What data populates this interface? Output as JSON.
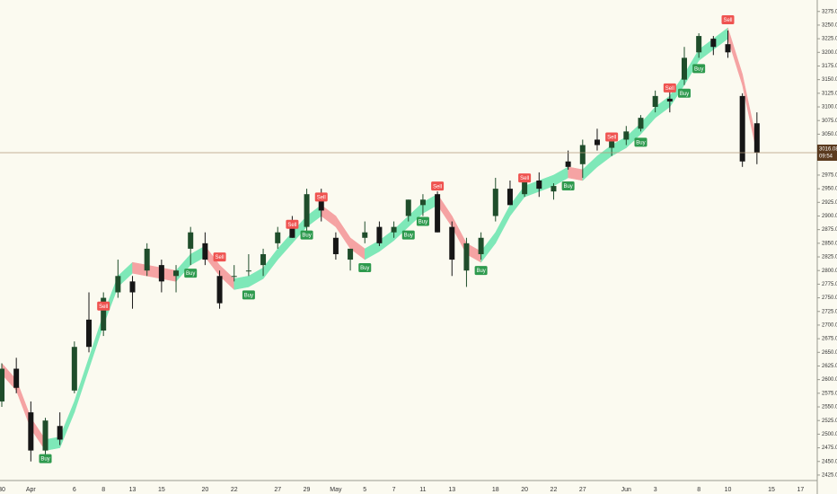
{
  "chart_data": {
    "type": "candlestick",
    "categories": [
      "30",
      null,
      "Apr",
      null,
      null,
      "6",
      null,
      "8",
      null,
      "13",
      null,
      "15",
      null,
      null,
      "20",
      null,
      "22",
      null,
      null,
      "27",
      null,
      "29",
      null,
      "May",
      null,
      "5",
      null,
      "7",
      null,
      "11",
      null,
      "13",
      null,
      null,
      "18",
      null,
      "20",
      null,
      "22",
      null,
      "27",
      null,
      null,
      "Jun",
      null,
      "3",
      null,
      null,
      "8",
      null,
      "10",
      null,
      null,
      "15",
      null,
      "17"
    ],
    "open": [
      2560,
      2620,
      2540,
      2470,
      2515,
      2580,
      2710,
      2690,
      2760,
      2780,
      2800,
      2810,
      2790,
      2840,
      2850,
      2790,
      2790,
      2800,
      2810,
      2850,
      2890,
      2880,
      2930,
      2860,
      2820,
      2860,
      2880,
      2870,
      2900,
      2920,
      2940,
      2880,
      2800,
      2830,
      2900,
      2950,
      2940,
      2965,
      2945,
      3000,
      2995,
      3040,
      3025,
      3040,
      3060,
      3100,
      3115,
      3150,
      3200,
      3225,
      3215,
      3120,
      3070,
      null,
      null,
      null
    ],
    "high": [
      2630,
      2640,
      2560,
      2530,
      2540,
      2670,
      2760,
      2760,
      2820,
      2790,
      2850,
      2820,
      2810,
      2880,
      2870,
      2800,
      2810,
      2830,
      2840,
      2880,
      2900,
      2950,
      2950,
      2870,
      2840,
      2890,
      2890,
      2890,
      2930,
      2940,
      2945,
      2890,
      2860,
      2870,
      2970,
      2965,
      2975,
      2980,
      2960,
      3020,
      3040,
      3060,
      3050,
      3065,
      3085,
      3130,
      3130,
      3210,
      3235,
      3230,
      3240,
      3125,
      3090,
      null,
      null,
      null
    ],
    "low": [
      2550,
      2575,
      2450,
      2455,
      2480,
      2575,
      2650,
      2680,
      2750,
      2730,
      2790,
      2760,
      2760,
      2810,
      2810,
      2730,
      2780,
      2790,
      2790,
      2840,
      2860,
      2870,
      2890,
      2820,
      2800,
      2850,
      2845,
      2860,
      2890,
      2900,
      2870,
      2790,
      2770,
      2820,
      2890,
      2920,
      2935,
      2935,
      2930,
      2985,
      2970,
      3020,
      3010,
      3030,
      3055,
      3090,
      3090,
      3140,
      3190,
      3195,
      3190,
      2990,
      2995,
      null,
      null,
      null
    ],
    "close": [
      2620,
      2585,
      2470,
      2525,
      2490,
      2660,
      2660,
      2750,
      2790,
      2760,
      2840,
      2780,
      2800,
      2870,
      2820,
      2740,
      2790,
      2800,
      2830,
      2870,
      2860,
      2940,
      2910,
      2830,
      2840,
      2870,
      2850,
      2880,
      2930,
      2930,
      2870,
      2820,
      2850,
      2860,
      2950,
      2920,
      2970,
      2950,
      2955,
      2990,
      3030,
      3030,
      3045,
      3055,
      3080,
      3120,
      3110,
      3190,
      3230,
      3210,
      3200,
      3000,
      3016.08,
      null,
      null,
      null
    ],
    "up_color": "#1f4d2b",
    "down_color": "#161616",
    "ylim": [
      2415,
      3296
    ],
    "yticks": [
      {
        "value": 3275,
        "label": "3275.00"
      },
      {
        "value": 3250,
        "label": "3250.00"
      },
      {
        "value": 3225,
        "label": "3225.00"
      },
      {
        "value": 3200,
        "label": "3200.00"
      },
      {
        "value": 3175,
        "label": "3175.00"
      },
      {
        "value": 3150,
        "label": "3150.00"
      },
      {
        "value": 3125,
        "label": "3125.00"
      },
      {
        "value": 3100,
        "label": "3100.00"
      },
      {
        "value": 3075,
        "label": "3075.00"
      },
      {
        "value": 3050,
        "label": "3050.00"
      },
      {
        "value": 2975,
        "label": "2975.00"
      },
      {
        "value": 2950,
        "label": "2950.00"
      },
      {
        "value": 2925,
        "label": "2925.00"
      },
      {
        "value": 2900,
        "label": "2900.00"
      },
      {
        "value": 2875,
        "label": "2875.00"
      },
      {
        "value": 2850,
        "label": "2850.00"
      },
      {
        "value": 2825,
        "label": "2825.00"
      },
      {
        "value": 2800,
        "label": "2800.00"
      },
      {
        "value": 2775,
        "label": "2775.00"
      },
      {
        "value": 2750,
        "label": "2750.00"
      },
      {
        "value": 2725,
        "label": "2725.00"
      },
      {
        "value": 2700,
        "label": "2700.00"
      },
      {
        "value": 2675,
        "label": "2675.00"
      },
      {
        "value": 2650,
        "label": "2650.00"
      },
      {
        "value": 2625,
        "label": "2625.00"
      },
      {
        "value": 2600,
        "label": "2600.00"
      },
      {
        "value": 2575,
        "label": "2575.00"
      },
      {
        "value": 2550,
        "label": "2550.00"
      },
      {
        "value": 2525,
        "label": "2525.00"
      },
      {
        "value": 2500,
        "label": "2500.00"
      },
      {
        "value": 2475,
        "label": "2475.00"
      },
      {
        "value": 2450,
        "label": "2450.00"
      },
      {
        "value": 2425,
        "label": "2425.00"
      }
    ],
    "band": {
      "upper": [
        2630,
        2600,
        2530,
        2490,
        2495,
        2560,
        2640,
        2720,
        2790,
        2815,
        2810,
        2805,
        2800,
        2830,
        2845,
        2810,
        2785,
        2790,
        2805,
        2840,
        2870,
        2900,
        2920,
        2900,
        2860,
        2840,
        2855,
        2875,
        2900,
        2925,
        2940,
        2900,
        2850,
        2835,
        2870,
        2920,
        2955,
        2965,
        2975,
        2990,
        2985,
        3010,
        3030,
        3045,
        3070,
        3100,
        3120,
        3160,
        3205,
        3225,
        3245,
        3160,
        3035,
        null,
        null,
        null
      ],
      "lower": [
        2610,
        2580,
        2510,
        2470,
        2475,
        2540,
        2620,
        2700,
        2770,
        2795,
        2790,
        2785,
        2780,
        2810,
        2825,
        2790,
        2765,
        2770,
        2785,
        2820,
        2850,
        2880,
        2900,
        2880,
        2840,
        2820,
        2835,
        2855,
        2880,
        2905,
        2920,
        2880,
        2830,
        2815,
        2850,
        2900,
        2935,
        2945,
        2955,
        2970,
        2965,
        2990,
        3010,
        3025,
        3050,
        3080,
        3100,
        3140,
        3185,
        3205,
        3225,
        3140,
        3015,
        null,
        null,
        null
      ],
      "up_color": "#7ee8b8",
      "down_color": "#f5a3a3"
    },
    "signals": [
      null,
      null,
      null,
      "Buy",
      null,
      null,
      null,
      "Sell",
      null,
      null,
      null,
      null,
      null,
      "Buy",
      null,
      "Sell",
      null,
      "Buy",
      null,
      null,
      "Sell",
      "Buy",
      "Sell",
      null,
      null,
      "Buy",
      null,
      null,
      "Buy",
      "Buy",
      "Sell",
      null,
      null,
      "Buy",
      null,
      null,
      "Sell",
      null,
      null,
      "Buy",
      null,
      null,
      "Sell",
      null,
      "Buy",
      null,
      "Sell",
      "Buy",
      "Buy",
      null,
      "Sell",
      null,
      null,
      null,
      null,
      null
    ],
    "signal_colors": {
      "Buy": "#2e9a4e",
      "Sell": "#ef5350"
    },
    "signal_placement": {
      "Buy": "below",
      "Sell": "above"
    },
    "price_line_color": "#b39a7a",
    "price_label_color": "#5a3a1e",
    "countdown": "09:54"
  }
}
